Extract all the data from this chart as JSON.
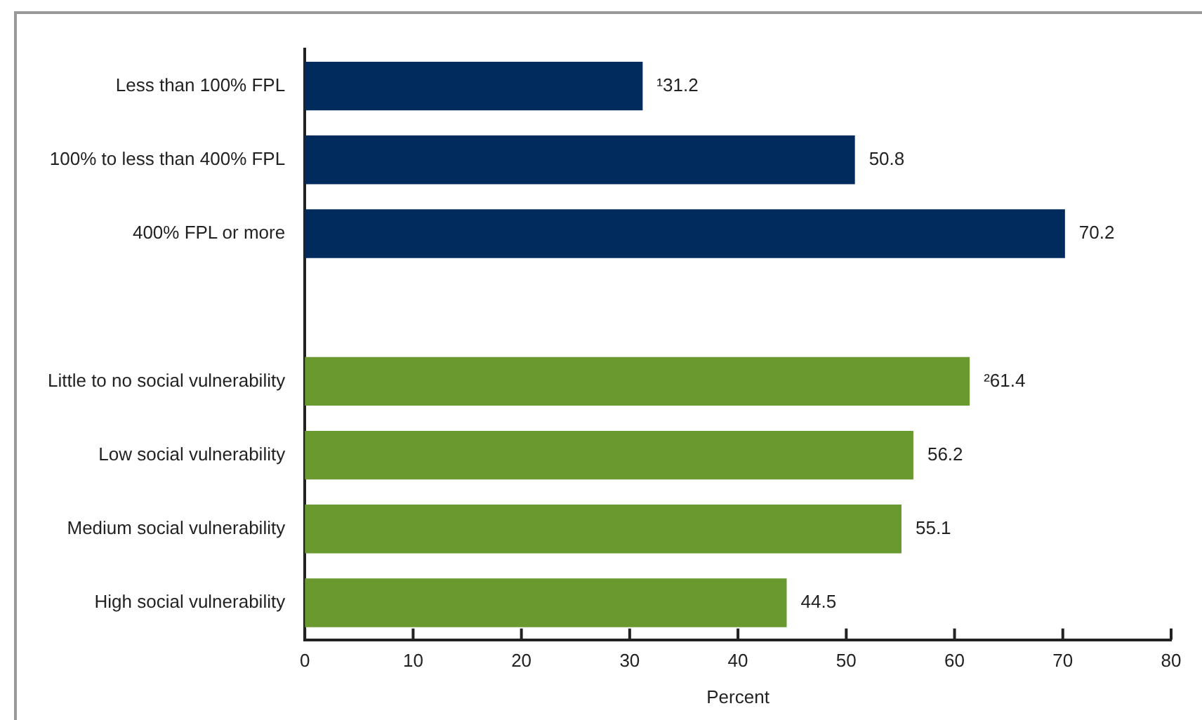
{
  "chart_data": {
    "type": "bar",
    "orientation": "horizontal",
    "categories": [
      "Less than 100% FPL",
      "100% to less than 400% FPL",
      "400% FPL or more",
      null,
      "Little to no social vulnerability",
      "Low social vulnerability",
      "Medium social vulnerability",
      "High social vulnerability"
    ],
    "values": [
      31.2,
      50.8,
      70.2,
      null,
      61.4,
      56.2,
      55.1,
      44.5
    ],
    "colors": [
      "#002b5c",
      "#002b5c",
      "#002b5c",
      "#002b5c",
      "#6a9a2f",
      "#6a9a2f",
      "#6a9a2f",
      "#6a9a2f"
    ],
    "value_labels": [
      "¹31.2",
      "50.8",
      "70.2",
      null,
      "²61.4",
      "56.2",
      "55.1",
      "44.5"
    ],
    "xlabel": "Percent",
    "xlim": [
      0,
      80
    ],
    "xticks": [
      0,
      10,
      20,
      30,
      40,
      50,
      60,
      70,
      80
    ],
    "grid": false
  }
}
